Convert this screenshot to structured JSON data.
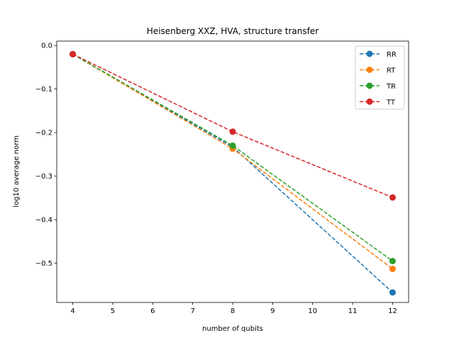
{
  "chart_data": {
    "type": "line",
    "title": "Heisenberg XXZ, HVA, structure transfer",
    "xlabel": "number of qubits",
    "ylabel": "log10 average norm",
    "xlim": [
      3.6,
      12.4
    ],
    "ylim": [
      -0.59,
      0.01
    ],
    "xticks": [
      4,
      5,
      6,
      7,
      8,
      9,
      10,
      11,
      12
    ],
    "yticks": [
      0.0,
      -0.1,
      -0.2,
      -0.3,
      -0.4,
      -0.5
    ],
    "ytick_labels": [
      "0.0",
      "−0.1",
      "−0.2",
      "−0.3",
      "−0.4",
      "−0.5"
    ],
    "legend_position": "top-right",
    "grid": false,
    "series": [
      {
        "name": "RR",
        "color": "#1f77b4",
        "x": [
          4,
          8,
          12
        ],
        "y": [
          -0.02,
          -0.233,
          -0.567
        ]
      },
      {
        "name": "RT",
        "color": "#ff7f0e",
        "x": [
          4,
          8,
          12
        ],
        "y": [
          -0.02,
          -0.237,
          -0.513
        ]
      },
      {
        "name": "TR",
        "color": "#2ca02c",
        "x": [
          4,
          8,
          12
        ],
        "y": [
          -0.02,
          -0.23,
          -0.495
        ]
      },
      {
        "name": "TT",
        "color": "#d62728",
        "x": [
          4,
          8,
          12
        ],
        "y": [
          -0.02,
          -0.198,
          -0.349
        ]
      }
    ]
  }
}
